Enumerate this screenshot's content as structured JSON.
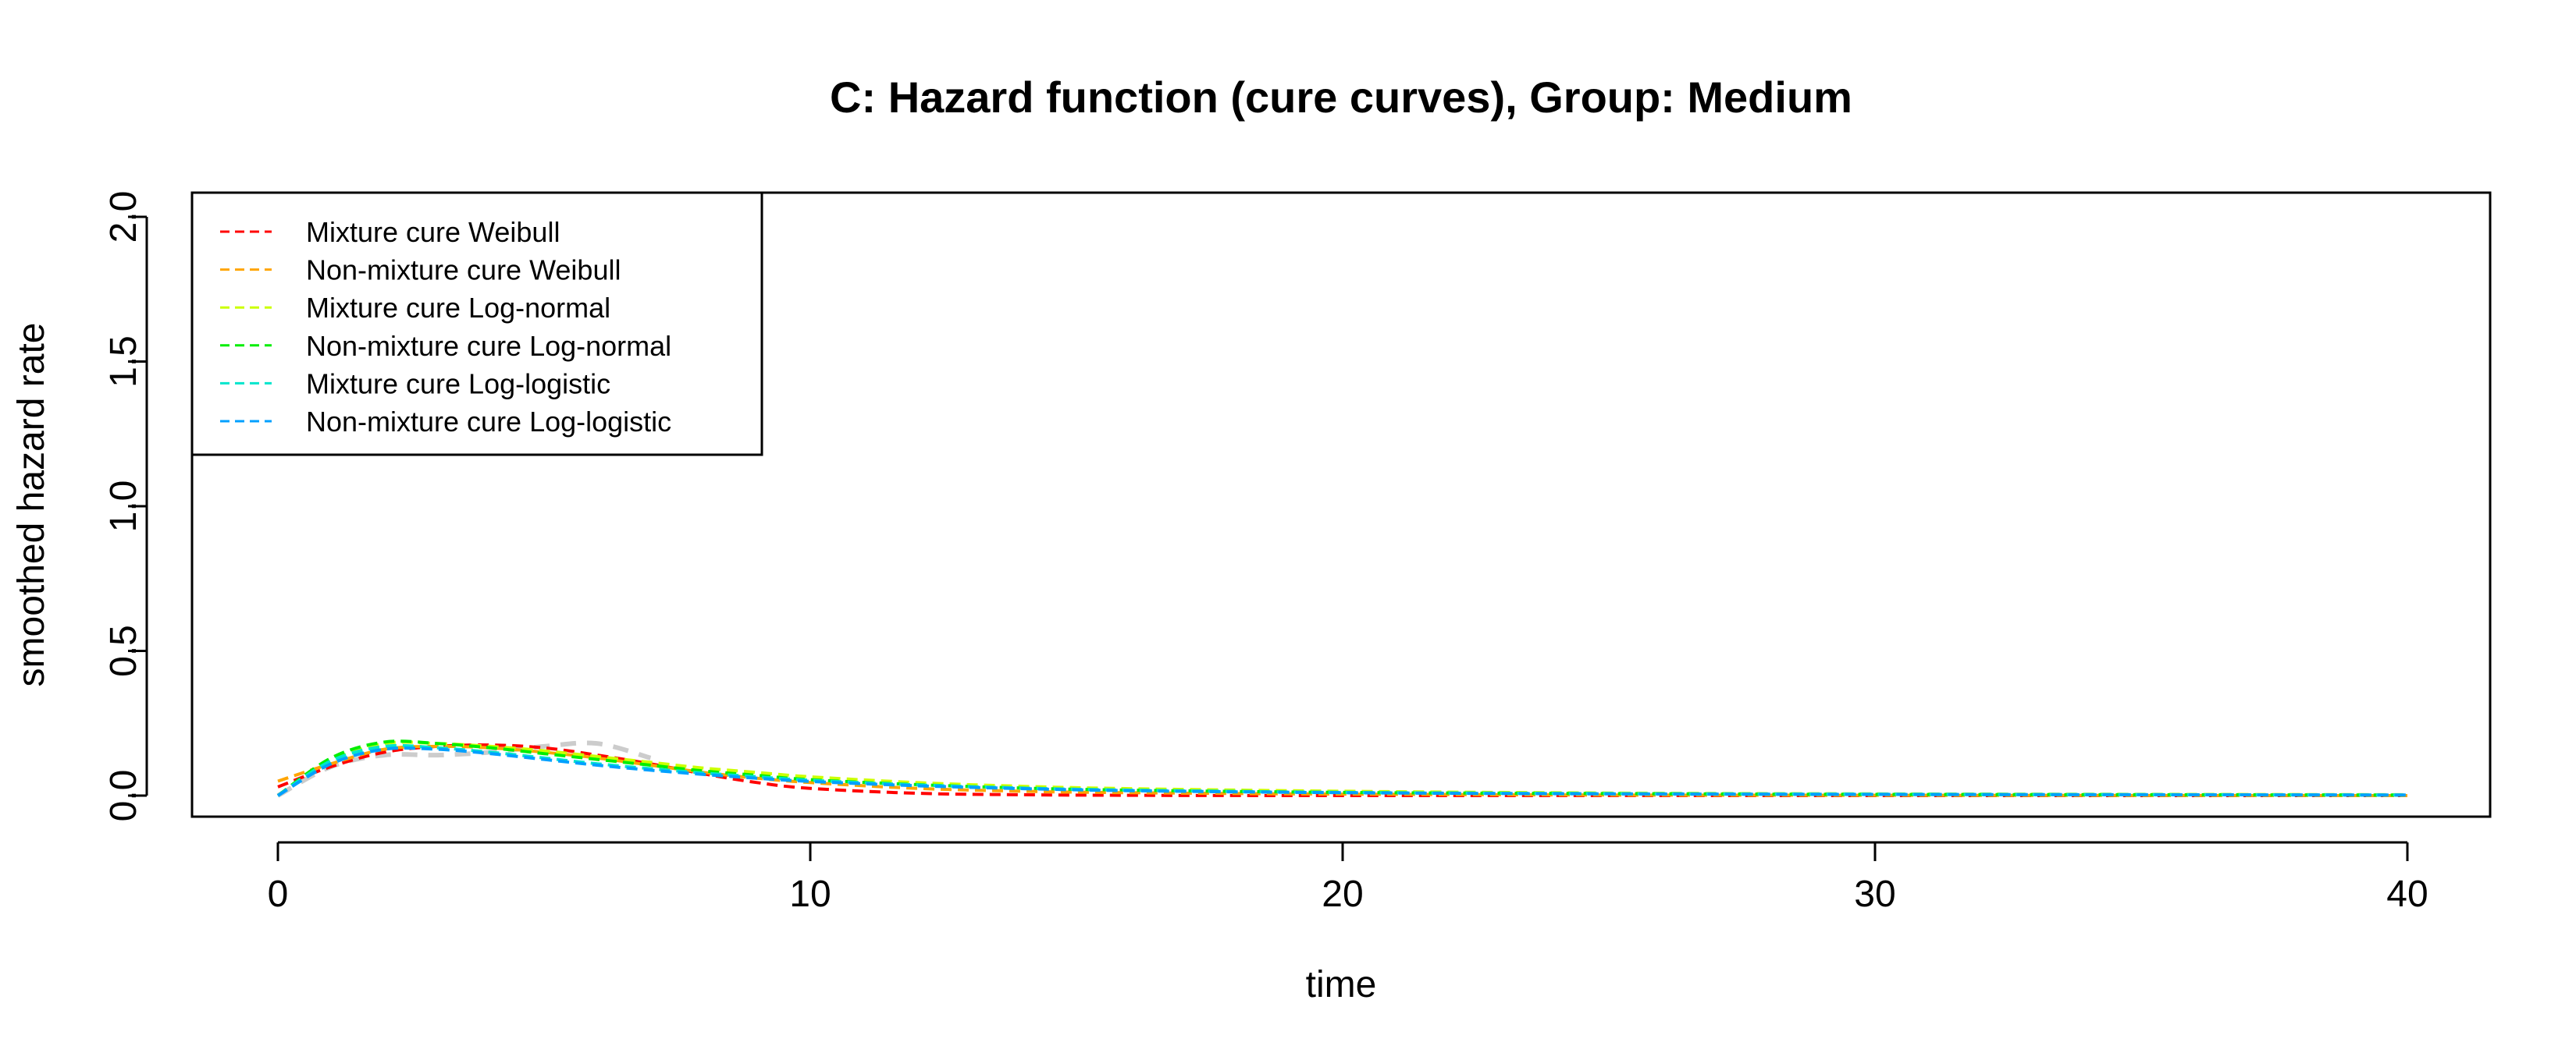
{
  "chart_data": {
    "type": "line",
    "title": "C: Hazard function (cure curves), Group: Medium",
    "xlabel": "time",
    "ylabel": "smoothed hazard rate",
    "xlim": [
      0,
      40
    ],
    "ylim": [
      0,
      2
    ],
    "x_ticks": [
      "0",
      "10",
      "20",
      "30",
      "40"
    ],
    "y_ticks": [
      "0.0",
      "0.5",
      "1.0",
      "1.5",
      "2.0"
    ],
    "legend_position": "top-left",
    "grid": false,
    "background_curve": {
      "color": "#cccccc",
      "points": [
        [
          0,
          0.0
        ],
        [
          1,
          0.1
        ],
        [
          2,
          0.14
        ],
        [
          3,
          0.14
        ],
        [
          4,
          0.15
        ],
        [
          5,
          0.17
        ],
        [
          6,
          0.18
        ],
        [
          7,
          0.13
        ]
      ]
    },
    "series": [
      {
        "name": "Mixture cure Weibull",
        "color": "#ff0000",
        "points": [
          [
            0,
            0.03
          ],
          [
            1,
            0.1
          ],
          [
            2,
            0.15
          ],
          [
            3,
            0.17
          ],
          [
            4,
            0.175
          ],
          [
            5,
            0.165
          ],
          [
            6,
            0.14
          ],
          [
            7,
            0.11
          ],
          [
            8,
            0.075
          ],
          [
            9,
            0.045
          ],
          [
            10,
            0.025
          ],
          [
            12,
            0.008
          ],
          [
            14,
            0.003
          ],
          [
            16,
            0.001
          ],
          [
            20,
            0.0
          ],
          [
            40,
            0.0
          ]
        ]
      },
      {
        "name": "Non-mixture cure Weibull",
        "color": "#ffa500",
        "points": [
          [
            0,
            0.05
          ],
          [
            1,
            0.11
          ],
          [
            2,
            0.16
          ],
          [
            3,
            0.17
          ],
          [
            4,
            0.165
          ],
          [
            5,
            0.15
          ],
          [
            6,
            0.13
          ],
          [
            7,
            0.105
          ],
          [
            8,
            0.08
          ],
          [
            9,
            0.06
          ],
          [
            10,
            0.045
          ],
          [
            12,
            0.025
          ],
          [
            14,
            0.015
          ],
          [
            16,
            0.01
          ],
          [
            20,
            0.005
          ],
          [
            25,
            0.002
          ],
          [
            30,
            0.001
          ],
          [
            40,
            0.0
          ]
        ]
      },
      {
        "name": "Mixture cure Log-normal",
        "color": "#ccff00",
        "points": [
          [
            0,
            0.0
          ],
          [
            1,
            0.12
          ],
          [
            2,
            0.18
          ],
          [
            3,
            0.18
          ],
          [
            4,
            0.17
          ],
          [
            5,
            0.155
          ],
          [
            6,
            0.135
          ],
          [
            7,
            0.115
          ],
          [
            8,
            0.095
          ],
          [
            9,
            0.08
          ],
          [
            10,
            0.065
          ],
          [
            12,
            0.045
          ],
          [
            14,
            0.032
          ],
          [
            16,
            0.024
          ],
          [
            20,
            0.015
          ],
          [
            25,
            0.009
          ],
          [
            30,
            0.006
          ],
          [
            40,
            0.003
          ]
        ]
      },
      {
        "name": "Non-mixture cure Log-normal",
        "color": "#00ee00",
        "points": [
          [
            0,
            0.0
          ],
          [
            1,
            0.13
          ],
          [
            2,
            0.185
          ],
          [
            3,
            0.18
          ],
          [
            4,
            0.165
          ],
          [
            5,
            0.145
          ],
          [
            6,
            0.125
          ],
          [
            7,
            0.105
          ],
          [
            8,
            0.085
          ],
          [
            9,
            0.07
          ],
          [
            10,
            0.055
          ],
          [
            12,
            0.038
          ],
          [
            14,
            0.026
          ],
          [
            16,
            0.019
          ],
          [
            20,
            0.011
          ],
          [
            25,
            0.007
          ],
          [
            30,
            0.004
          ],
          [
            40,
            0.002
          ]
        ]
      },
      {
        "name": "Mixture cure Log-logistic",
        "color": "#00e5cc",
        "points": [
          [
            0,
            0.0
          ],
          [
            1,
            0.12
          ],
          [
            2,
            0.17
          ],
          [
            3,
            0.165
          ],
          [
            4,
            0.15
          ],
          [
            5,
            0.13
          ],
          [
            6,
            0.11
          ],
          [
            7,
            0.093
          ],
          [
            8,
            0.078
          ],
          [
            9,
            0.065
          ],
          [
            10,
            0.053
          ],
          [
            12,
            0.037
          ],
          [
            14,
            0.026
          ],
          [
            16,
            0.019
          ],
          [
            20,
            0.011
          ],
          [
            25,
            0.007
          ],
          [
            30,
            0.005
          ],
          [
            40,
            0.002
          ]
        ]
      },
      {
        "name": "Non-mixture cure Log-logistic",
        "color": "#00a0ff",
        "points": [
          [
            0,
            0.0
          ],
          [
            1,
            0.11
          ],
          [
            2,
            0.16
          ],
          [
            3,
            0.16
          ],
          [
            4,
            0.145
          ],
          [
            5,
            0.125
          ],
          [
            6,
            0.105
          ],
          [
            7,
            0.088
          ],
          [
            8,
            0.073
          ],
          [
            9,
            0.06
          ],
          [
            10,
            0.049
          ],
          [
            12,
            0.034
          ],
          [
            14,
            0.024
          ],
          [
            16,
            0.017
          ],
          [
            20,
            0.01
          ],
          [
            25,
            0.006
          ],
          [
            30,
            0.004
          ],
          [
            40,
            0.002
          ]
        ]
      }
    ]
  }
}
